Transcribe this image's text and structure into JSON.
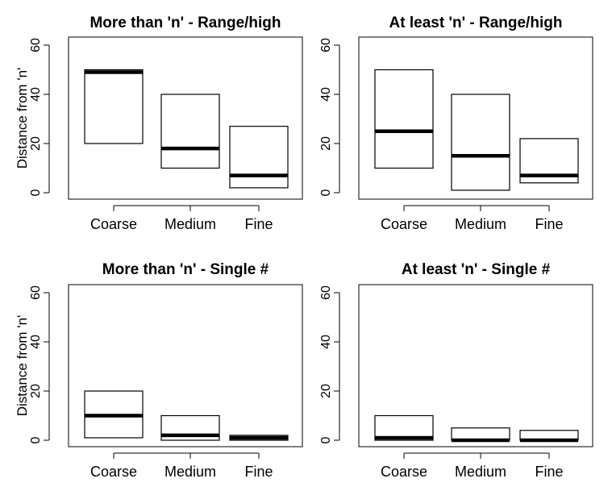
{
  "chart_data": [
    {
      "type": "boxplot",
      "title": "More than 'n' - Range/high",
      "ylabel": "Distance from 'n'",
      "ylim": [
        0,
        60
      ],
      "yticks": [
        0,
        20,
        40,
        60
      ],
      "categories": [
        "Coarse",
        "Medium",
        "Fine"
      ],
      "boxes": [
        {
          "low": 20,
          "median": 49,
          "high": 50
        },
        {
          "low": 10,
          "median": 18,
          "high": 40
        },
        {
          "low": 2,
          "median": 7,
          "high": 27
        }
      ]
    },
    {
      "type": "boxplot",
      "title": "At least 'n' - Range/high",
      "ylabel": "",
      "ylim": [
        0,
        60
      ],
      "yticks": [
        0,
        20,
        40,
        60
      ],
      "categories": [
        "Coarse",
        "Medium",
        "Fine"
      ],
      "boxes": [
        {
          "low": 10,
          "median": 25,
          "high": 50
        },
        {
          "low": 1,
          "median": 15,
          "high": 40
        },
        {
          "low": 4,
          "median": 7,
          "high": 22
        }
      ]
    },
    {
      "type": "boxplot",
      "title": "More than 'n' - Single #",
      "ylabel": "Distance from 'n'",
      "ylim": [
        0,
        60
      ],
      "yticks": [
        0,
        20,
        40,
        60
      ],
      "categories": [
        "Coarse",
        "Medium",
        "Fine"
      ],
      "boxes": [
        {
          "low": 1,
          "median": 10,
          "high": 20
        },
        {
          "low": 0,
          "median": 2,
          "high": 10
        },
        {
          "low": 0,
          "median": 1,
          "high": 2
        }
      ]
    },
    {
      "type": "boxplot",
      "title": "At least 'n' - Single #",
      "ylabel": "",
      "ylim": [
        0,
        60
      ],
      "yticks": [
        0,
        20,
        40,
        60
      ],
      "categories": [
        "Coarse",
        "Medium",
        "Fine"
      ],
      "boxes": [
        {
          "low": 0,
          "median": 1,
          "high": 10
        },
        {
          "low": 0,
          "median": 0,
          "high": 5
        },
        {
          "low": 0,
          "median": 0,
          "high": 4
        }
      ]
    }
  ]
}
